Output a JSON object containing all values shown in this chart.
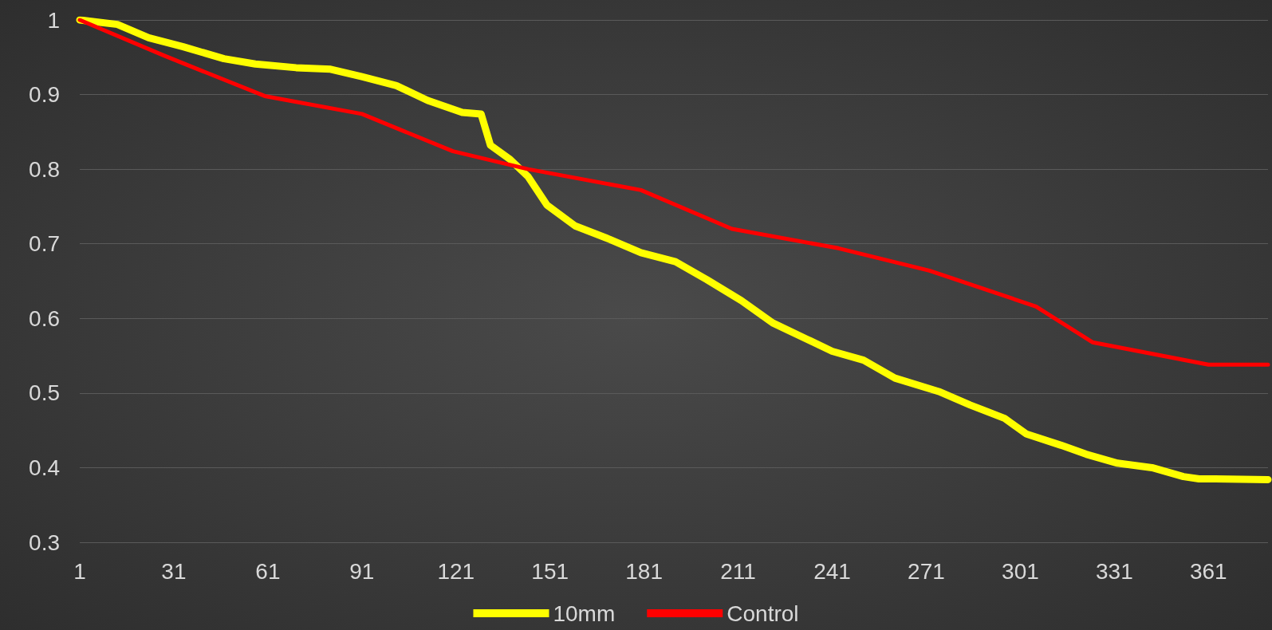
{
  "chart_data": {
    "type": "line",
    "xlim": [
      1,
      380
    ],
    "xticks": [
      1,
      31,
      61,
      91,
      121,
      151,
      181,
      211,
      241,
      271,
      301,
      331,
      361
    ],
    "ylim": [
      0.3,
      1
    ],
    "yticks": [
      0.3,
      0.4,
      0.5,
      0.6,
      0.7,
      0.8,
      0.9,
      1
    ],
    "grid": "y",
    "legend": "bottom",
    "marker": "none",
    "line_style": "solid",
    "series": [
      {
        "name": "10mm",
        "color": "#ffff00",
        "x": [
          1,
          13,
          23,
          34,
          47,
          57,
          70,
          81,
          91,
          102,
          112,
          123,
          129,
          132,
          138,
          144,
          150,
          159,
          170,
          180,
          191,
          201,
          212,
          222,
          233,
          241,
          251,
          261,
          275,
          285,
          296,
          303,
          314,
          322,
          332,
          343,
          353,
          358,
          361,
          380
        ],
        "values": [
          1.0,
          0.994,
          0.976,
          0.964,
          0.948,
          0.941,
          0.936,
          0.934,
          0.924,
          0.912,
          0.892,
          0.876,
          0.874,
          0.832,
          0.814,
          0.79,
          0.752,
          0.724,
          0.706,
          0.688,
          0.676,
          0.652,
          0.624,
          0.594,
          0.572,
          0.556,
          0.544,
          0.52,
          0.502,
          0.484,
          0.466,
          0.445,
          0.43,
          0.418,
          0.406,
          0.4,
          0.388,
          0.385,
          0.385,
          0.384
        ]
      },
      {
        "name": "Control",
        "color": "#ff0000",
        "x": [
          1,
          28,
          60,
          91,
          120,
          144,
          180,
          209,
          243,
          272,
          306,
          324,
          361,
          380
        ],
        "values": [
          1.0,
          0.952,
          0.898,
          0.874,
          0.824,
          0.8,
          0.772,
          0.72,
          0.694,
          0.664,
          0.616,
          0.568,
          0.538,
          0.538
        ]
      }
    ]
  }
}
